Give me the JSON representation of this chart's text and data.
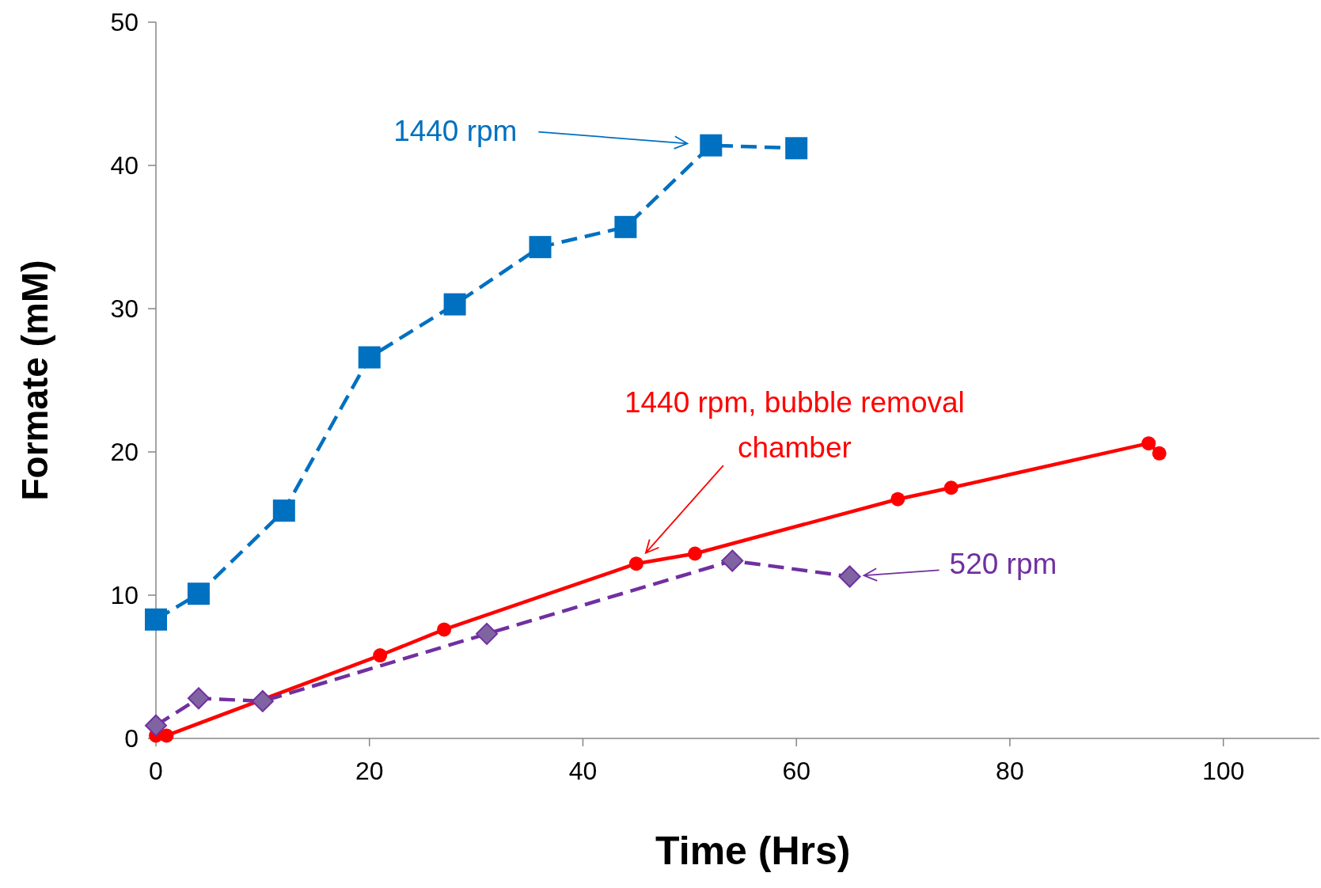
{
  "chart_data": {
    "type": "line",
    "xlabel": "Time (Hrs)",
    "ylabel": "Formate (mM)",
    "xlim": [
      0,
      109
    ],
    "xticks": [
      0,
      20,
      40,
      60,
      80,
      100
    ],
    "ylim": [
      0,
      50
    ],
    "yticks": [
      0,
      10,
      20,
      30,
      40,
      50
    ],
    "grid": false,
    "series": [
      {
        "color": "#0070c0",
        "marker": "square",
        "line_style": "dashed",
        "x": [
          0,
          4,
          12,
          20,
          28,
          36,
          44,
          52,
          60
        ],
        "values": [
          8.3,
          10.1,
          15.9,
          26.6,
          30.3,
          34.3,
          35.7,
          41.4,
          41.2
        ]
      },
      {
        "color": "#ff0000",
        "marker": "circle",
        "line_style": "solid",
        "x": [
          0,
          1,
          21,
          27,
          45,
          50.5,
          69.5,
          74.5,
          93,
          94
        ],
        "values": [
          0.2,
          0.2,
          5.8,
          7.6,
          12.2,
          12.9,
          16.7,
          17.5,
          20.6,
          19.9
        ]
      },
      {
        "color": "#7030a0",
        "marker": "diamond",
        "line_style": "dashed",
        "x": [
          0,
          4,
          10,
          31,
          54,
          65
        ],
        "values": [
          0.9,
          2.8,
          2.6,
          7.3,
          12.4,
          11.3
        ]
      }
    ],
    "annotations": [
      "1440 rpm",
      "1440 rpm, bubble removal chamber",
      "520 rpm"
    ]
  }
}
